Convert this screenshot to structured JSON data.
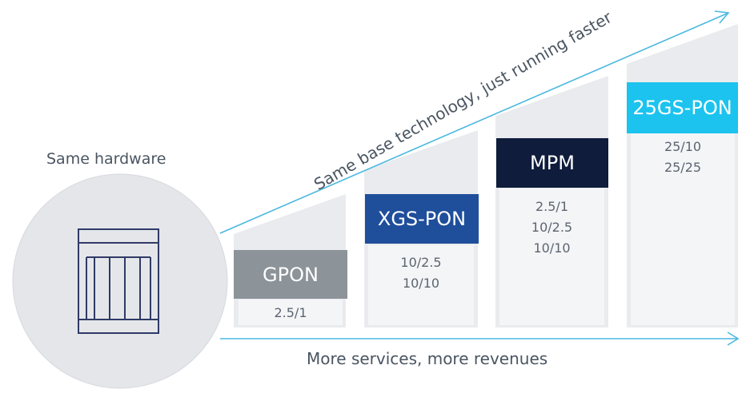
{
  "hardware": {
    "label": "Same hardware"
  },
  "diagonal_caption": "Same base technology, just running faster",
  "bottom_caption": "More services, more revenues",
  "technologies": [
    {
      "name": "GPON",
      "rates": [
        "2.5/1"
      ],
      "color": "#8c9399"
    },
    {
      "name": "XGS-PON",
      "rates": [
        "10/2.5",
        "10/10"
      ],
      "color": "#1f4e9b"
    },
    {
      "name": "MPM",
      "rates": [
        "2.5/1",
        "10/2.5",
        "10/10"
      ],
      "color": "#0f1c3b"
    },
    {
      "name": "25GS-PON",
      "rates": [
        "25/10",
        "25/25"
      ],
      "color": "#1cc3ee"
    }
  ],
  "colors": {
    "arrow": "#4bb8e0",
    "step": "#e9ebee",
    "circle": "#e4e6ea",
    "icon": "#2f3a66"
  }
}
